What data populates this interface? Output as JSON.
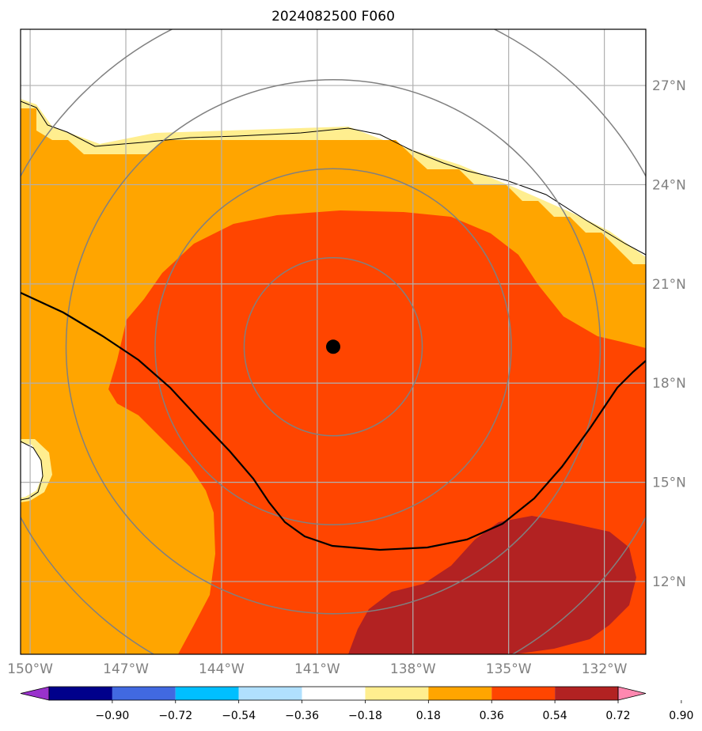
{
  "title": "2024082500 F060",
  "map": {
    "lon_range": [
      -150.3,
      -130.7
    ],
    "lat_range": [
      9.8,
      28.7
    ],
    "center_marker": {
      "lon": -140.5,
      "lat": 19.1
    },
    "range_ring_count": 4,
    "lat_ticks": [
      {
        "value": 27,
        "label": "27°N"
      },
      {
        "value": 24,
        "label": "24°N"
      },
      {
        "value": 21,
        "label": "21°N"
      },
      {
        "value": 18,
        "label": "18°N"
      },
      {
        "value": 15,
        "label": "15°N"
      },
      {
        "value": 12,
        "label": "12°N"
      }
    ],
    "lon_ticks": [
      {
        "value": -150,
        "label": "150°W"
      },
      {
        "value": -147,
        "label": "147°W"
      },
      {
        "value": -144,
        "label": "144°W"
      },
      {
        "value": -141,
        "label": "141°W"
      },
      {
        "value": -138,
        "label": "138°W"
      },
      {
        "value": -135,
        "label": "135°W"
      },
      {
        "value": -132,
        "label": "132°W"
      }
    ],
    "grid": true
  },
  "colorbar": {
    "levels": [
      "−0.90",
      "−0.72",
      "−0.54",
      "−0.36",
      "−0.18",
      "0.18",
      "0.36",
      "0.54",
      "0.72",
      "0.90"
    ],
    "colors": [
      "#9932cc",
      "#00008b",
      "#4169e1",
      "#00bfff",
      "#b0e0fe",
      "#ffffff",
      "#ffee8f",
      "#ffa500",
      "#ff4500",
      "#b22222",
      "#ff88b0"
    ],
    "extend": "both"
  },
  "colors": {
    "ring": "#808080",
    "grid": "#b0b0b0",
    "contour": "#000000"
  }
}
